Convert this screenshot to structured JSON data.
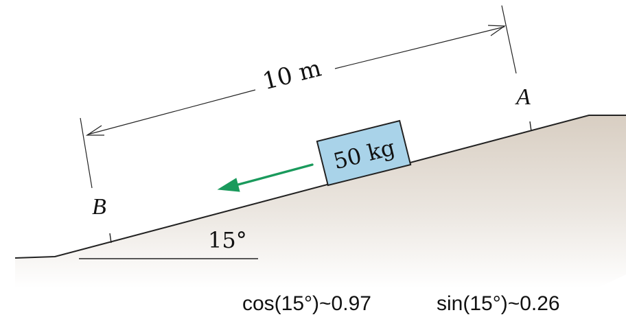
{
  "diagram": {
    "distance_label": "10 m",
    "point_a_label": "A",
    "point_b_label": "B",
    "angle_label": "15°",
    "block_label": "50 kg",
    "block_color": "#a9d3e9",
    "arrow_color": "#1a9a5c",
    "ground_color": "#e6dfd6"
  },
  "footer": {
    "cos_text": "cos(15°)~0.97",
    "sin_text": "sin(15°)~0.26"
  }
}
